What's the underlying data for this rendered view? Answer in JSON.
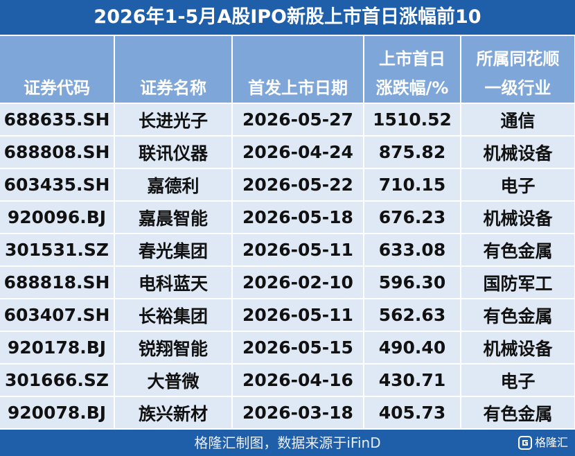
{
  "title": "2026年1-5月A股IPO新股上市首日涨幅前10",
  "table": {
    "header": [
      [
        "证券代码"
      ],
      [
        "证券名称"
      ],
      [
        "首发上市日期"
      ],
      [
        "上市首日",
        "涨跌幅/%"
      ],
      [
        "所属同花顺",
        "一级行业"
      ]
    ],
    "rows": [
      [
        "688635.SH",
        "长进光子",
        "2026-05-27",
        "1510.52",
        "通信"
      ],
      [
        "688808.SH",
        "联讯仪器",
        "2026-04-24",
        "875.82",
        "机械设备"
      ],
      [
        "603435.SH",
        "嘉德利",
        "2026-05-22",
        "710.15",
        "电子"
      ],
      [
        "920096.BJ",
        "嘉晨智能",
        "2026-05-18",
        "676.23",
        "机械设备"
      ],
      [
        "301531.SZ",
        "春光集团",
        "2026-05-11",
        "633.08",
        "有色金属"
      ],
      [
        "688818.SH",
        "电科蓝天",
        "2026-02-10",
        "596.30",
        "国防军工"
      ],
      [
        "603407.SH",
        "长裕集团",
        "2026-05-11",
        "562.63",
        "有色金属"
      ],
      [
        "920178.BJ",
        "锐翔智能",
        "2026-05-15",
        "490.40",
        "机械设备"
      ],
      [
        "301666.SZ",
        "大普微",
        "2026-04-16",
        "430.71",
        "电子"
      ],
      [
        "920078.BJ",
        "族兴新材",
        "2026-03-18",
        "405.73",
        "有色金属"
      ]
    ]
  },
  "footer": {
    "source": "格隆汇制图，数据来源于iFinD",
    "logo": "格隆汇"
  }
}
